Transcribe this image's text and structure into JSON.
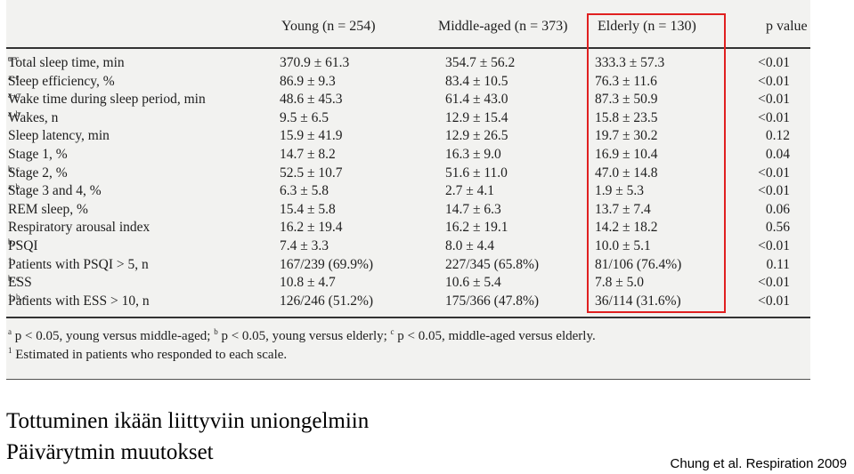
{
  "table": {
    "headers": {
      "young": "Young (n = 254)",
      "middle": "Middle-aged (n = 373)",
      "elderly": "Elderly (n = 130)",
      "p": "p value"
    },
    "rows": [
      {
        "label": "Total sleep time, min",
        "sup": "a–c",
        "young": "370.9 ± 61.3",
        "middle": "354.7 ± 56.2",
        "elderly": "333.3 ± 57.3",
        "p": "<0.01"
      },
      {
        "label": "Sleep efficiency, %",
        "sup": "a–c",
        "young": "86.9 ± 9.3",
        "middle": "83.4 ± 10.5",
        "elderly": "76.3 ± 11.6",
        "p": "<0.01"
      },
      {
        "label": "Wake time during sleep period, min",
        "sup": "a–c",
        "young": "48.6 ± 45.3",
        "middle": "61.4 ± 43.0",
        "elderly": "87.3 ± 50.9",
        "p": "<0.01"
      },
      {
        "label": "Wakes, n",
        "sup": "a, b",
        "young": "9.5 ± 6.5",
        "middle": "12.9 ± 15.4",
        "elderly": "15.8 ± 23.5",
        "p": "<0.01"
      },
      {
        "label": "Sleep latency, min",
        "sup": "",
        "young": "15.9 ± 41.9",
        "middle": "12.9 ± 26.5",
        "elderly": "19.7 ± 30.2",
        "p": "0.12"
      },
      {
        "label": "Stage 1, %",
        "sup": "",
        "young": "14.7 ± 8.2",
        "middle": "16.3 ± 9.0",
        "elderly": "16.9 ± 10.4",
        "p": "0.04"
      },
      {
        "label": "Stage 2, %",
        "sup": "b, c",
        "young": "52.5 ± 10.7",
        "middle": "51.6 ± 11.0",
        "elderly": "47.0 ± 14.8",
        "p": "<0.01"
      },
      {
        "label": "Stage 3 and 4, %",
        "sup": "a, b",
        "young": "6.3 ± 5.8",
        "middle": "2.7 ± 4.1",
        "elderly": "1.9 ± 5.3",
        "p": "<0.01"
      },
      {
        "label": "REM sleep, %",
        "sup": "",
        "young": "15.4 ± 5.8",
        "middle": "14.7 ± 6.3",
        "elderly": "13.7 ± 7.4",
        "p": "0.06"
      },
      {
        "label": "Respiratory arousal index",
        "sup": "",
        "young": "16.2 ± 19.4",
        "middle": "16.2 ± 19.1",
        "elderly": "14.2 ± 18.2",
        "p": "0.56"
      },
      {
        "label": "PSQI",
        "sup": "b, c",
        "young": "7.4 ± 3.3",
        "middle": "8.0 ± 4.4",
        "elderly": "10.0 ± 5.1",
        "p": "<0.01"
      },
      {
        "label": "Patients with PSQI > 5, n",
        "sup": "1",
        "young": "167/239 (69.9%)",
        "middle": "227/345 (65.8%)",
        "elderly": "81/106 (76.4%)",
        "p": "0.11"
      },
      {
        "label": "ESS",
        "sup": "b, c",
        "young": "10.8 ± 4.7",
        "middle": "10.6 ± 5.4",
        "elderly": "7.8 ± 5.0",
        "p": "<0.01"
      },
      {
        "label": "Patients with ESS > 10, n",
        "sup": "1, b, c",
        "young": "126/246 (51.2%)",
        "middle": "175/366 (47.8%)",
        "elderly": "36/114 (31.6%)",
        "p": "<0.01"
      }
    ],
    "footnotes": {
      "line1": {
        "a_sup": "a",
        "a_text": " p < 0.05, young versus middle-aged; ",
        "b_sup": "b",
        "b_text": " p < 0.05, young versus elderly; ",
        "c_sup": "c",
        "c_text": " p < 0.05, middle-aged versus elderly."
      },
      "line2": {
        "sup": "1",
        "text": " Estimated in patients who responded to each scale."
      }
    }
  },
  "caption": {
    "line1": "Tottuminen ikään liittyviin uniongelmiin",
    "line2": "Päivärytmin muutokset"
  },
  "citation": "Chung et al. Respiration  2009",
  "colors": {
    "highlight": "#e02020"
  }
}
